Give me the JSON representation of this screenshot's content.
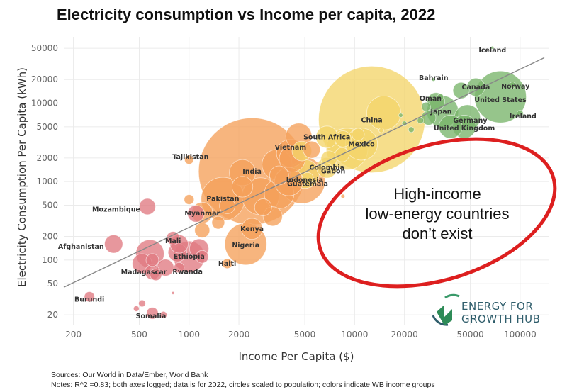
{
  "chart_data": {
    "type": "scatter",
    "title": "Electricity consumption vs Income per capita, 2022",
    "xlabel": "Income Per Capita ($)",
    "ylabel": "Electricity Consumption Per Capita (kWh)",
    "x_scale": "log",
    "y_scale": "log",
    "xlim": [
      175,
      150000
    ],
    "ylim": [
      15,
      70000
    ],
    "x_ticks": [
      200,
      500,
      1000,
      2000,
      5000,
      10000,
      20000,
      50000,
      100000
    ],
    "y_ticks": [
      20,
      50,
      100,
      200,
      500,
      1000,
      2000,
      5000,
      10000,
      20000,
      50000
    ],
    "grid": true,
    "trend_line": {
      "x": [
        175,
        140000
      ],
      "y": [
        45,
        38000
      ],
      "color": "#888888"
    },
    "colors": {
      "low": "#e07a82",
      "lower_middle": "#f5a05a",
      "upper_middle": "#f3d56a",
      "high": "#79b56a"
    },
    "points": [
      {
        "x": 2400,
        "y": 1350,
        "size": 1420,
        "group": "lower_middle",
        "label": "India"
      },
      {
        "x": 12700,
        "y": 6200,
        "size": 1410,
        "group": "upper_middle",
        "label": "China"
      },
      {
        "x": 76000,
        "y": 12000,
        "size": 333,
        "group": "high",
        "label": "United States"
      },
      {
        "x": 4800,
        "y": 1050,
        "size": 275,
        "group": "lower_middle",
        "label": "Indonesia"
      },
      {
        "x": 1600,
        "y": 600,
        "size": 235,
        "group": "lower_middle",
        "label": "Pakistan"
      },
      {
        "x": 2200,
        "y": 160,
        "size": 218,
        "group": "lower_middle",
        "label": "Nigeria"
      },
      {
        "x": 1000,
        "y": 110,
        "size": 123,
        "group": "low",
        "label": "Ethiopia"
      },
      {
        "x": 11000,
        "y": 3000,
        "size": 128,
        "group": "upper_middle",
        "label": "Mexico"
      },
      {
        "x": 4100,
        "y": 2300,
        "size": 98,
        "group": "lower_middle",
        "label": "Vietnam"
      },
      {
        "x": 34000,
        "y": 7800,
        "size": 125,
        "group": "high",
        "label": "Japan"
      },
      {
        "x": 9000,
        "y": 2600,
        "size": 215,
        "group": "upper_middle"
      },
      {
        "x": 2700,
        "y": 650,
        "size": 171,
        "group": "lower_middle"
      },
      {
        "x": 3500,
        "y": 700,
        "size": 110,
        "group": "lower_middle"
      },
      {
        "x": 15000,
        "y": 7500,
        "size": 144,
        "group": "upper_middle"
      },
      {
        "x": 3400,
        "y": 1650,
        "size": 113,
        "group": "lower_middle"
      },
      {
        "x": 5000,
        "y": 1250,
        "size": 103,
        "group": "upper_middle"
      },
      {
        "x": 580,
        "y": 120,
        "size": 99,
        "group": "low"
      },
      {
        "x": 4000,
        "y": 1000,
        "size": 100,
        "group": "lower_middle"
      },
      {
        "x": 6800,
        "y": 1500,
        "size": 52,
        "group": "upper_middle",
        "label": "Colombia"
      },
      {
        "x": 6800,
        "y": 3700,
        "size": 60,
        "group": "upper_middle",
        "label": "South Africa"
      },
      {
        "x": 2100,
        "y": 1300,
        "size": 85,
        "group": "lower_middle"
      },
      {
        "x": 4200,
        "y": 1950,
        "size": 85,
        "group": "lower_middle"
      },
      {
        "x": 4600,
        "y": 3800,
        "size": 84,
        "group": "lower_middle"
      },
      {
        "x": 48000,
        "y": 6500,
        "size": 84,
        "group": "high",
        "label": "Germany"
      },
      {
        "x": 46000,
        "y": 5000,
        "size": 67,
        "group": "high",
        "label": "United Kingdom"
      },
      {
        "x": 38000,
        "y": 5000,
        "size": 67,
        "group": "high"
      },
      {
        "x": 1200,
        "y": 400,
        "size": 55,
        "group": "lower_middle",
        "label": "Myanmar"
      },
      {
        "x": 2400,
        "y": 250,
        "size": 55,
        "group": "lower_middle",
        "label": "Kenya"
      },
      {
        "x": 1150,
        "y": 140,
        "size": 46,
        "group": "low"
      },
      {
        "x": 520,
        "y": 90,
        "size": 48,
        "group": "low"
      },
      {
        "x": 2100,
        "y": 860,
        "size": 54,
        "group": "lower_middle"
      },
      {
        "x": 3200,
        "y": 360,
        "size": 46,
        "group": "lower_middle"
      },
      {
        "x": 3500,
        "y": 1200,
        "size": 45,
        "group": "lower_middle"
      },
      {
        "x": 850,
        "y": 125,
        "size": 43,
        "group": "low"
      },
      {
        "x": 350,
        "y": 160,
        "size": 41,
        "group": "low",
        "label": "Afghanistan"
      },
      {
        "x": 870,
        "y": 160,
        "size": 41,
        "group": "low"
      },
      {
        "x": 2800,
        "y": 470,
        "size": 36,
        "group": "lower_middle"
      },
      {
        "x": 1100,
        "y": 390,
        "size": 35,
        "group": "low"
      },
      {
        "x": 720,
        "y": 80,
        "size": 35,
        "group": "low"
      },
      {
        "x": 5500,
        "y": 2550,
        "size": 36,
        "group": "lower_middle"
      },
      {
        "x": 4800,
        "y": 2450,
        "size": 48,
        "group": "upper_middle"
      },
      {
        "x": 560,
        "y": 480,
        "size": 33,
        "group": "low",
        "label": "Mozambique"
      },
      {
        "x": 31000,
        "y": 10500,
        "size": 39,
        "group": "high"
      },
      {
        "x": 54000,
        "y": 16000,
        "size": 40,
        "group": "high",
        "label": "Canada"
      },
      {
        "x": 44000,
        "y": 14500,
        "size": 33,
        "group": "high"
      },
      {
        "x": 1700,
        "y": 490,
        "size": 30,
        "group": "lower_middle"
      },
      {
        "x": 1200,
        "y": 240,
        "size": 28,
        "group": "lower_middle"
      },
      {
        "x": 8500,
        "y": 3500,
        "size": 33,
        "group": "upper_middle"
      },
      {
        "x": 28000,
        "y": 6500,
        "size": 26,
        "group": "high"
      },
      {
        "x": 7000,
        "y": 1950,
        "size": 32,
        "group": "upper_middle"
      },
      {
        "x": 1200,
        "y": 110,
        "size": 20,
        "group": "low"
      },
      {
        "x": 600,
        "y": 100,
        "size": 20,
        "group": "low"
      },
      {
        "x": 1500,
        "y": 300,
        "size": 20,
        "group": "lower_middle"
      },
      {
        "x": 800,
        "y": 190,
        "size": 22,
        "group": "low",
        "label": "Mali"
      },
      {
        "x": 870,
        "y": 80,
        "size": 13,
        "group": "low",
        "label": "Rwanda"
      },
      {
        "x": 1000,
        "y": 590,
        "size": 12,
        "group": "lower_middle"
      },
      {
        "x": 10500,
        "y": 4000,
        "size": 19,
        "group": "upper_middle"
      },
      {
        "x": 600,
        "y": 70,
        "size": 28,
        "group": "low",
        "label": "Madagascar"
      },
      {
        "x": 630,
        "y": 65,
        "size": 17,
        "group": "low"
      },
      {
        "x": 1000,
        "y": 1900,
        "size": 10,
        "group": "lower_middle",
        "label": "Tajikistan"
      },
      {
        "x": 1700,
        "y": 90,
        "size": 12,
        "group": "lower_middle",
        "label": "Haiti"
      },
      {
        "x": 8400,
        "y": 2200,
        "size": 25,
        "group": "upper_middle"
      },
      {
        "x": 5200,
        "y": 1100,
        "size": 17,
        "group": "upper_middle",
        "label": "Guatemala"
      },
      {
        "x": 7000,
        "y": 1600,
        "size": 2,
        "group": "upper_middle",
        "label": "Gabon"
      },
      {
        "x": 33000,
        "y": 12000,
        "size": 5,
        "group": "high",
        "label": "Oman"
      },
      {
        "x": 30000,
        "y": 20000,
        "size": 1.5,
        "group": "high",
        "label": "Bahrain"
      },
      {
        "x": 68000,
        "y": 51000,
        "size": 0.4,
        "group": "high",
        "label": "Iceland"
      },
      {
        "x": 90000,
        "y": 17000,
        "size": 5,
        "group": "high",
        "label": "Norway"
      },
      {
        "x": 100000,
        "y": 7400,
        "size": 5,
        "group": "high",
        "label": "Ireland"
      },
      {
        "x": 250,
        "y": 34,
        "size": 13,
        "group": "low",
        "label": "Burundi"
      },
      {
        "x": 600,
        "y": 21,
        "size": 17,
        "group": "low",
        "label": "Somalia"
      },
      {
        "x": 520,
        "y": 28,
        "size": 6,
        "group": "low"
      },
      {
        "x": 700,
        "y": 20,
        "size": 6,
        "group": "low"
      },
      {
        "x": 480,
        "y": 24,
        "size": 4,
        "group": "low"
      },
      {
        "x": 800,
        "y": 38,
        "size": 1,
        "group": "low"
      },
      {
        "x": 19000,
        "y": 7000,
        "size": 2,
        "group": "high"
      },
      {
        "x": 20000,
        "y": 5500,
        "size": 3,
        "group": "high"
      },
      {
        "x": 14500,
        "y": 4500,
        "size": 3,
        "group": "upper_middle"
      },
      {
        "x": 25000,
        "y": 6000,
        "size": 5,
        "group": "high"
      },
      {
        "x": 22000,
        "y": 4600,
        "size": 4,
        "group": "high"
      },
      {
        "x": 8500,
        "y": 650,
        "size": 2,
        "group": "lower_middle"
      },
      {
        "x": 27000,
        "y": 9000,
        "size": 10,
        "group": "high"
      }
    ]
  },
  "annotation": {
    "lines": [
      "High-income",
      "low-energy countries",
      "don’t exist"
    ],
    "color": "#dd1f1f"
  },
  "logo": {
    "line1": "ENERGY FOR",
    "line2": "GROWTH HUB"
  },
  "footer": {
    "sources": "Sources: Our World in Data/Ember, World Bank",
    "notes": "Notes: R^2 =0.83; both axes logged; data is for 2022, circles scaled to population; colors indicate WB income groups"
  }
}
